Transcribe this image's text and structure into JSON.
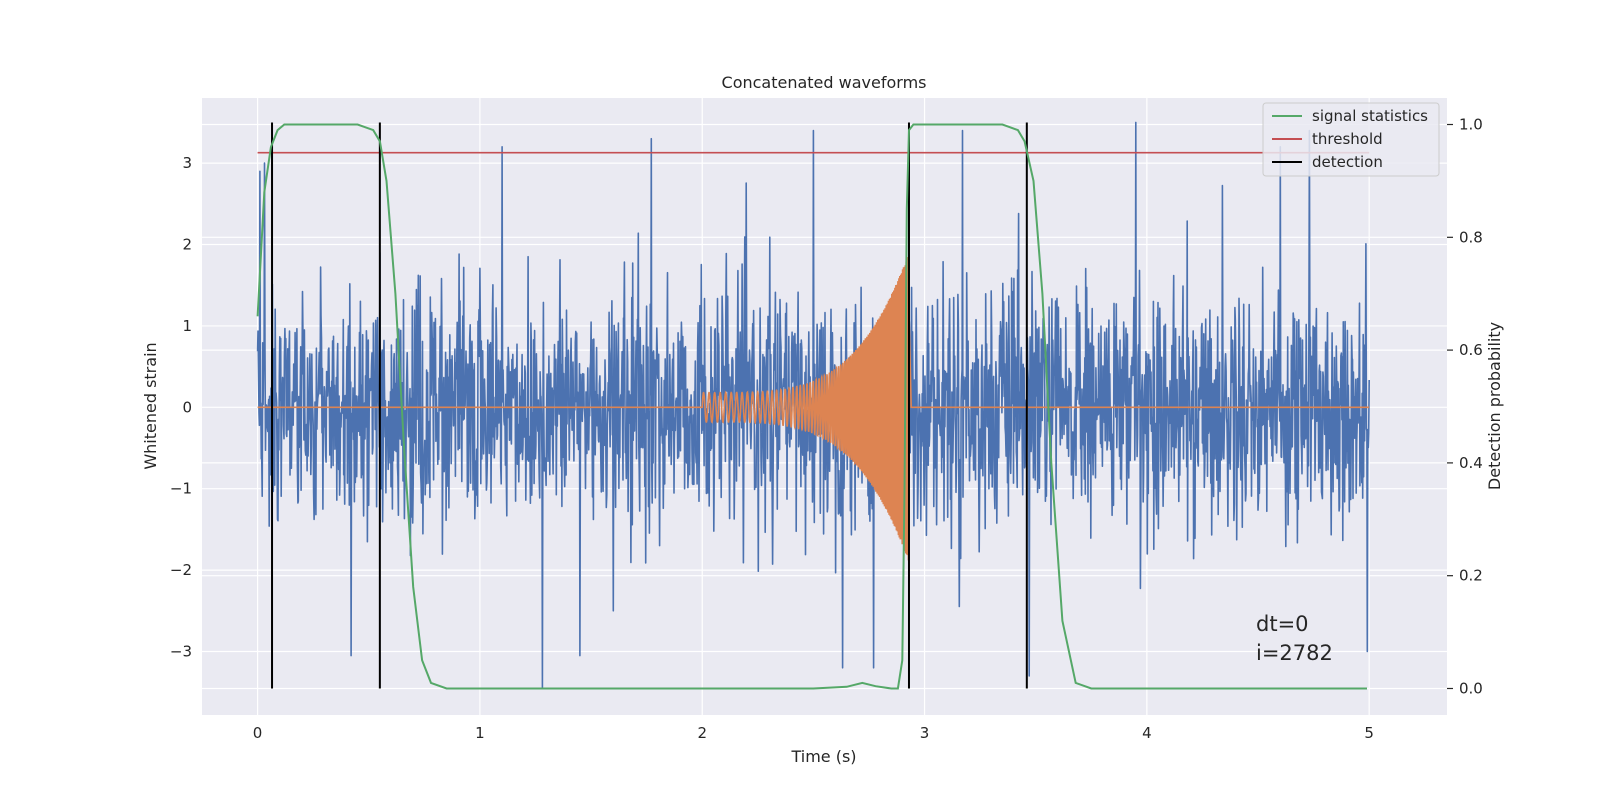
{
  "chart_data": {
    "type": "line",
    "title": "Concatenated waveforms",
    "xlabel": "Time (s)",
    "ylabel": "Whitened strain",
    "y2label": "Detection probability",
    "xlim": [
      -0.25,
      5.35
    ],
    "ylim": [
      -3.78,
      3.8
    ],
    "y2lim": [
      -0.047,
      1.047
    ],
    "xticks": [
      0,
      1,
      2,
      3,
      4,
      5
    ],
    "yticks": [
      -3,
      -2,
      -1,
      0,
      1,
      2,
      3
    ],
    "yticklabels": [
      "−3",
      "−2",
      "−1",
      "0",
      "1",
      "2",
      "3"
    ],
    "y2ticks": [
      0.0,
      0.2,
      0.4,
      0.6,
      0.8,
      1.0
    ],
    "y2ticklabels": [
      "0.0",
      "0.2",
      "0.4",
      "0.6",
      "0.8",
      "1.0"
    ],
    "grid": true,
    "legend_placement": "top-right",
    "legend": [
      {
        "label": "signal statistics",
        "color": "#55a868"
      },
      {
        "label": "threshold",
        "color": "#c44e52"
      },
      {
        "label": "detection",
        "color": "#000000"
      }
    ],
    "series": [
      {
        "kind": "noise",
        "color": "#4c72b0",
        "x_range": [
          0,
          5
        ],
        "typical_envelope": [
          -1.5,
          1.7
        ],
        "peak_points": [
          {
            "x": 0.01,
            "y": 2.9
          },
          {
            "x": 0.03,
            "y": 3.0
          },
          {
            "x": 0.55,
            "y": 1.9
          },
          {
            "x": 1.1,
            "y": 3.2
          },
          {
            "x": 1.28,
            "y": -3.45
          },
          {
            "x": 1.45,
            "y": -3.05
          },
          {
            "x": 1.77,
            "y": 3.3
          },
          {
            "x": 2.5,
            "y": 3.4
          },
          {
            "x": 2.63,
            "y": -3.2
          },
          {
            "x": 2.77,
            "y": -3.2
          },
          {
            "x": 3.17,
            "y": 3.4
          },
          {
            "x": 3.47,
            "y": -3.3
          },
          {
            "x": 3.95,
            "y": 3.5
          },
          {
            "x": 4.6,
            "y": 3.2
          },
          {
            "x": 4.73,
            "y": 3.4
          },
          {
            "x": 4.99,
            "y": -3.0
          },
          {
            "x": 0.42,
            "y": -3.05
          },
          {
            "x": 1.6,
            "y": -2.5
          }
        ]
      },
      {
        "kind": "chirp",
        "color": "#dd8452",
        "x_range": [
          2.0,
          2.93
        ],
        "start_amplitude": 0.18,
        "peak_amplitude": 1.9,
        "start_frequency_hz": 40,
        "end_frequency_hz": 260,
        "baseline": 0
      },
      {
        "name": "signal statistics",
        "axis": "right",
        "color": "#55a868",
        "x": [
          0.0,
          0.03,
          0.06,
          0.09,
          0.12,
          0.16,
          0.25,
          0.45,
          0.52,
          0.55,
          0.58,
          0.62,
          0.66,
          0.7,
          0.74,
          0.78,
          0.85,
          1.5,
          2.5,
          2.65,
          2.72,
          2.78,
          2.85,
          2.88,
          2.9,
          2.91,
          2.92,
          2.93,
          2.95,
          3.0,
          3.35,
          3.42,
          3.45,
          3.49,
          3.53,
          3.57,
          3.62,
          3.68,
          3.75,
          4.99
        ],
        "y": [
          0.66,
          0.88,
          0.96,
          0.99,
          1.0,
          1.0,
          1.0,
          1.0,
          0.99,
          0.97,
          0.9,
          0.7,
          0.42,
          0.18,
          0.05,
          0.01,
          0.0,
          0.0,
          0.0,
          0.003,
          0.01,
          0.004,
          0.0,
          0.0,
          0.05,
          0.35,
          0.85,
          0.99,
          1.0,
          1.0,
          1.0,
          0.99,
          0.97,
          0.9,
          0.7,
          0.4,
          0.12,
          0.01,
          0.0,
          0.0
        ]
      },
      {
        "name": "threshold",
        "axis": "right",
        "color": "#c44e52",
        "x": [
          0.0,
          5.0
        ],
        "y": [
          0.95,
          0.95
        ]
      }
    ],
    "detections": [
      0.065,
      0.55,
      2.93,
      3.46
    ],
    "annotation_lines": [
      "dt=0",
      "i=2782"
    ]
  }
}
